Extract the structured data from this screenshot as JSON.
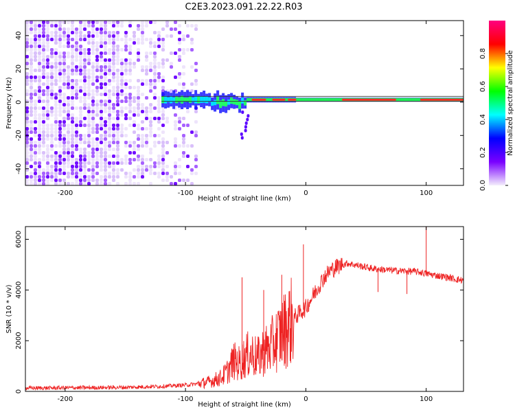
{
  "title": "C2E3.2023.091.22.22.R03",
  "chart_data": [
    {
      "type": "heatmap",
      "title": "C2E3.2023.091.22.22.R03",
      "xlabel": "Height of straight line (km)",
      "ylabel": "Frequency (Hz)",
      "xlim": [
        -233,
        131
      ],
      "ylim": [
        -50,
        49
      ],
      "xticks": [
        -200,
        -100,
        0,
        100
      ],
      "yticks": [
        -40,
        -20,
        0,
        20,
        40
      ],
      "colorbar": {
        "label": "Normalized spectral amplitude",
        "range": [
          0,
          1
        ],
        "ticks": [
          "0.0",
          "0.2",
          "0.4",
          "0.6",
          "0.8"
        ],
        "colors": [
          "#f4eefc",
          "#7a00ff",
          "#0000ff",
          "#00ffff",
          "#00ff00",
          "#ffff00",
          "#ff0000",
          "#ff0080"
        ]
      },
      "signal_band": {
        "x_start": -120,
        "x_end": 131,
        "center_freq_hz": 1.5,
        "upper_line_hz": 3.5,
        "lower_line_hz": 0.5
      },
      "noise_region": {
        "x_start": -233,
        "x_end": -90
      }
    },
    {
      "type": "line",
      "xlabel": "Height of straight line (km)",
      "ylabel": "SNR (10 * v/v)",
      "xlim": [
        -233,
        131
      ],
      "ylim": [
        0,
        6500
      ],
      "xticks": [
        -200,
        -100,
        0,
        100
      ],
      "yticks": [
        0,
        2000,
        4000,
        6000
      ],
      "series": [
        {
          "name": "SNR",
          "color": "#ee2222",
          "x": [
            -233,
            -200,
            -150,
            -120,
            -100,
            -90,
            -80,
            -70,
            -65,
            -60,
            -55,
            -50,
            -45,
            -40,
            -35,
            -30,
            -25,
            -20,
            -15,
            -10,
            -5,
            0,
            5,
            10,
            15,
            20,
            25,
            30,
            35,
            40,
            45,
            50,
            55,
            60,
            65,
            70,
            75,
            80,
            85,
            90,
            95,
            100,
            105,
            110,
            115,
            120,
            125,
            131
          ],
          "y": [
            130,
            140,
            160,
            200,
            250,
            300,
            380,
            550,
            800,
            1200,
            1100,
            1400,
            1500,
            1300,
            1600,
            1700,
            2000,
            2300,
            2600,
            2900,
            3100,
            3300,
            3700,
            4100,
            4500,
            4750,
            4900,
            5000,
            5050,
            5000,
            4950,
            4900,
            4850,
            4820,
            4800,
            4780,
            4760,
            4750,
            4740,
            4730,
            4700,
            4650,
            4600,
            4560,
            4520,
            4480,
            4420,
            4380
          ]
        }
      ],
      "spikes": [
        {
          "x": -53,
          "y": 4500
        },
        {
          "x": -35,
          "y": 4000
        },
        {
          "x": -20,
          "y": 4600
        },
        {
          "x": -2,
          "y": 5800
        },
        {
          "x": 100,
          "y": 6500
        },
        {
          "x": 60,
          "y": 4000
        },
        {
          "x": 84,
          "y": 3800
        }
      ]
    }
  ]
}
